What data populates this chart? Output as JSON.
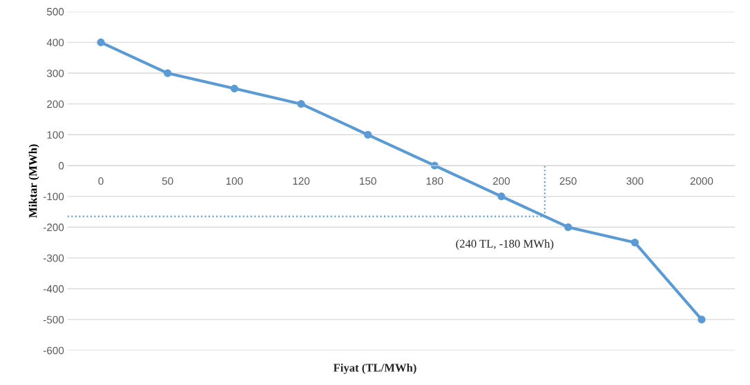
{
  "chart_data": {
    "type": "line",
    "xlabel": "Fiyat (TL/MWh)",
    "ylabel": "Miktar (MWh)",
    "categories": [
      "0",
      "50",
      "100",
      "120",
      "150",
      "180",
      "200",
      "250",
      "300",
      "2000"
    ],
    "series": [
      {
        "color": "#5b9bd5",
        "values": [
          400,
          300,
          250,
          200,
          100,
          0,
          -100,
          -200,
          -250,
          -500
        ]
      }
    ],
    "ylim": [
      -600,
      500
    ],
    "yticks": [
      -600,
      -500,
      -400,
      -300,
      -200,
      -100,
      0,
      100,
      200,
      300,
      400,
      500
    ],
    "grid": "y",
    "marker": "circle",
    "line_style": "solid",
    "ref_lines": [
      {
        "axis": "y",
        "value": -165,
        "color": "#5b9bd5",
        "line_style": "dotted"
      }
    ],
    "annotations": [
      "(240 TL, -180 MWh)"
    ]
  }
}
